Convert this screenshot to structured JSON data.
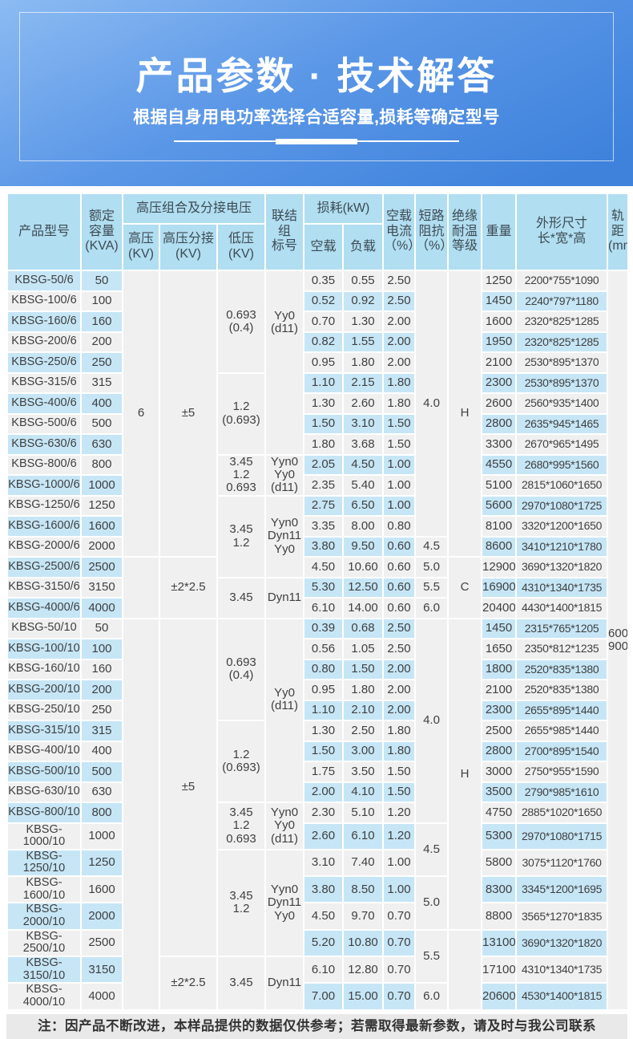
{
  "banner": {
    "title": "产品参数 · 技术解答",
    "subtitle": "根据自身用电功率选择合适容量,损耗等确定型号"
  },
  "colors": {
    "banner_blue_top": "#8cbbf2",
    "banner_blue_bottom": "#3e82dc",
    "header_cell": "#b1def1",
    "row_blue": "#c6e6f6",
    "row_grey": "#f0f0f0",
    "note_grey": "#e9e9e9"
  },
  "table": {
    "headers": {
      "model": "产品型号",
      "capacity": "额定\n容量\n(KVA)",
      "hv_group": "高压组合及分接电压",
      "hv": "高压\n(KV)",
      "hv_tap": "高压分接\n(KV)",
      "lv": "低压\n(KV)",
      "vector": "联结组\n标号",
      "loss_group": "损耗(kW)",
      "noload": "空载",
      "load": "负载",
      "noload_current": "空载\n电流\n（%）",
      "impedance": "短路\n阻抗\n（%）",
      "insulation": "绝缘\n耐温\n等级",
      "weight": "重量",
      "dims": "外形尺寸\n长*宽*高",
      "gauge_header": "轨距\n(mm)"
    },
    "gauge": "600\n900",
    "sections": [
      {
        "rows": [
          {
            "model": "KBSG-50/6",
            "kva": "50",
            "noload": "0.35",
            "load": "0.55",
            "current": "2.50",
            "weight": "1250",
            "dims": "2200*755*1090"
          },
          {
            "model": "KBSG-100/6",
            "kva": "100",
            "noload": "0.52",
            "load": "0.92",
            "current": "2.50",
            "weight": "1450",
            "dims": "2240*797*1180"
          },
          {
            "model": "KBSG-160/6",
            "kva": "160",
            "noload": "0.70",
            "load": "1.30",
            "current": "2.00",
            "weight": "1600",
            "dims": "2320*825*1285"
          },
          {
            "model": "KBSG-200/6",
            "kva": "200",
            "noload": "0.82",
            "load": "1.55",
            "current": "2.00",
            "weight": "1950",
            "dims": "2320*825*1285"
          },
          {
            "model": "KBSG-250/6",
            "kva": "250",
            "noload": "0.95",
            "load": "1.80",
            "current": "2.00",
            "weight": "2100",
            "dims": "2530*895*1370"
          },
          {
            "model": "KBSG-315/6",
            "kva": "315",
            "noload": "1.10",
            "load": "2.15",
            "current": "1.80",
            "weight": "2300",
            "dims": "2530*895*1370"
          },
          {
            "model": "KBSG-400/6",
            "kva": "400",
            "noload": "1.30",
            "load": "2.60",
            "current": "1.80",
            "weight": "2600",
            "dims": "2560*935*1400"
          },
          {
            "model": "KBSG-500/6",
            "kva": "500",
            "noload": "1.50",
            "load": "3.10",
            "current": "1.50",
            "weight": "2800",
            "dims": "2635*945*1465"
          },
          {
            "model": "KBSG-630/6",
            "kva": "630",
            "noload": "1.80",
            "load": "3.68",
            "current": "1.50",
            "weight": "3300",
            "dims": "2670*965*1495"
          },
          {
            "model": "KBSG-800/6",
            "kva": "800",
            "noload": "2.05",
            "load": "4.50",
            "current": "1.00",
            "weight": "4550",
            "dims": "2680*995*1560"
          },
          {
            "model": "KBSG-1000/6",
            "kva": "1000",
            "noload": "2.35",
            "load": "5.40",
            "current": "1.00",
            "weight": "5100",
            "dims": "2815*1060*1650"
          },
          {
            "model": "KBSG-1250/6",
            "kva": "1250",
            "noload": "2.75",
            "load": "6.50",
            "current": "1.00",
            "weight": "5600",
            "dims": "2970*1080*1725"
          },
          {
            "model": "KBSG-1600/6",
            "kva": "1600",
            "noload": "3.35",
            "load": "8.00",
            "current": "0.80",
            "weight": "8100",
            "dims": "3320*1200*1650"
          },
          {
            "model": "KBSG-2000/6",
            "kva": "2000",
            "noload": "3.80",
            "load": "9.50",
            "current": "0.60",
            "weight": "8600",
            "dims": "3410*1210*1780"
          },
          {
            "model": "KBSG-2500/6",
            "kva": "2500",
            "noload": "4.50",
            "load": "10.60",
            "current": "0.60",
            "weight": "12900",
            "dims": "3690*1320*1820"
          },
          {
            "model": "KBSG-3150/6",
            "kva": "3150",
            "noload": "5.30",
            "load": "12.50",
            "current": "0.60",
            "weight": "16900",
            "dims": "4310*1340*1735"
          },
          {
            "model": "KBSG-4000/6",
            "kva": "4000",
            "noload": "6.10",
            "load": "14.00",
            "current": "0.60",
            "weight": "20400",
            "dims": "4430*1400*1815"
          }
        ],
        "hv": [
          {
            "text": "6",
            "span": 14
          },
          {
            "text": "",
            "span": 3
          }
        ],
        "tap": [
          {
            "text": "±5",
            "span": 14
          },
          {
            "text": "±2*2.5",
            "span": 3
          }
        ],
        "lv": [
          {
            "text": "0.693\n(0.4)",
            "span": 5
          },
          {
            "text": "1.2\n(0.693)",
            "span": 4
          },
          {
            "text": "3.45\n1.2\n0.693",
            "span": 2
          },
          {
            "text": "3.45\n1.2",
            "span": 4
          },
          {
            "text": "3.45",
            "span": 2
          }
        ],
        "vector": [
          {
            "text": "Yy0\n(d11)",
            "span": 9,
            "lift": 100
          },
          {
            "text": "Yyn0\nYy0\n(d11)",
            "span": 2
          },
          {
            "text": "Yyn0\nDyn11\nYy0",
            "span": 4
          },
          {
            "text": "Dyn11",
            "span": 2
          }
        ],
        "impedance": [
          {
            "text": "4.0",
            "span": 13
          },
          {
            "text": "4.5",
            "span": 1
          },
          {
            "text": "5.0",
            "span": 1
          },
          {
            "text": "5.5",
            "span": 1
          },
          {
            "text": "6.0",
            "span": 1
          }
        ],
        "insulation": [
          {
            "text": "H",
            "span": 14
          },
          {
            "text": "C",
            "span": 3
          }
        ]
      },
      {
        "rows": [
          {
            "model": "KBSG-50/10",
            "kva": "50",
            "noload": "0.39",
            "load": "0.68",
            "current": "2.50",
            "weight": "1450",
            "dims": "2315*765*1205"
          },
          {
            "model": "KBSG-100/10",
            "kva": "100",
            "noload": "0.56",
            "load": "1.05",
            "current": "2.50",
            "weight": "1650",
            "dims": "2350*812*1235"
          },
          {
            "model": "KBSG-160/10",
            "kva": "160",
            "noload": "0.80",
            "load": "1.50",
            "current": "2.00",
            "weight": "1800",
            "dims": "2520*835*1380"
          },
          {
            "model": "KBSG-200/10",
            "kva": "200",
            "noload": "0.95",
            "load": "1.80",
            "current": "2.00",
            "weight": "2100",
            "dims": "2520*835*1380"
          },
          {
            "model": "KBSG-250/10",
            "kva": "250",
            "noload": "1.10",
            "load": "2.10",
            "current": "2.00",
            "weight": "2300",
            "dims": "2655*895*1440"
          },
          {
            "model": "KBSG-315/10",
            "kva": "315",
            "noload": "1.30",
            "load": "2.50",
            "current": "1.80",
            "weight": "2500",
            "dims": "2655*985*1440"
          },
          {
            "model": "KBSG-400/10",
            "kva": "400",
            "noload": "1.50",
            "load": "3.00",
            "current": "1.80",
            "weight": "2800",
            "dims": "2700*895*1540"
          },
          {
            "model": "KBSG-500/10",
            "kva": "500",
            "noload": "1.75",
            "load": "3.50",
            "current": "1.50",
            "weight": "3000",
            "dims": "2750*955*1590"
          },
          {
            "model": "KBSG-630/10",
            "kva": "630",
            "noload": "2.00",
            "load": "4.10",
            "current": "1.50",
            "weight": "3500",
            "dims": "2790*985*1610"
          },
          {
            "model": "KBSG-800/10",
            "kva": "800",
            "noload": "2.30",
            "load": "5.10",
            "current": "1.20",
            "weight": "4750",
            "dims": "2885*1020*1650"
          },
          {
            "model": "KBSG-1000/10",
            "kva": "1000",
            "noload": "2.60",
            "load": "6.10",
            "current": "1.20",
            "weight": "5300",
            "dims": "2970*1080*1715"
          },
          {
            "model": "KBSG-1250/10",
            "kva": "1250",
            "noload": "3.10",
            "load": "7.40",
            "current": "1.00",
            "weight": "5800",
            "dims": "3075*1120*1760"
          },
          {
            "model": "KBSG-1600/10",
            "kva": "1600",
            "noload": "3.80",
            "load": "8.50",
            "current": "1.00",
            "weight": "8300",
            "dims": "3345*1200*1695"
          },
          {
            "model": "KBSG-2000/10",
            "kva": "2000",
            "noload": "4.50",
            "load": "9.70",
            "current": "0.70",
            "weight": "8800",
            "dims": "3565*1270*1835"
          },
          {
            "model": "KBSG-2500/10",
            "kva": "2500",
            "noload": "5.20",
            "load": "10.80",
            "current": "0.70",
            "weight": "13100",
            "dims": "3690*1320*1820"
          },
          {
            "model": "KBSG-3150/10",
            "kva": "3150",
            "noload": "6.10",
            "load": "12.80",
            "current": "0.70",
            "weight": "17100",
            "dims": "4310*1340*1735"
          },
          {
            "model": "KBSG-4000/10",
            "kva": "4000",
            "noload": "7.00",
            "load": "15.00",
            "current": "0.70",
            "weight": "20600",
            "dims": "4530*1400*1815"
          }
        ],
        "hv": [
          {
            "text": "",
            "span": 17
          }
        ],
        "tap": [
          {
            "text": "±5",
            "span": 15
          },
          {
            "text": "±2*2.5",
            "span": 2
          }
        ],
        "lv": [
          {
            "text": "0.693\n(0.4)",
            "span": 5
          },
          {
            "text": "1.2\n(0.693)",
            "span": 4
          },
          {
            "text": "3.45\n1.2\n0.693",
            "span": 2
          },
          {
            "text": "3.45\n1.2",
            "span": 4
          },
          {
            "text": "3.45",
            "span": 2
          }
        ],
        "vector": [
          {
            "text": "Yy0\n(d11)",
            "span": 9,
            "lift": 26
          },
          {
            "text": "Yyn0\nYy0\n(d11)",
            "span": 2
          },
          {
            "text": "Yyn0\nDyn11\nYy0",
            "span": 4
          },
          {
            "text": "Dyn11",
            "span": 2
          }
        ],
        "impedance": [
          {
            "text": "4.0",
            "span": 10
          },
          {
            "text": "4.5",
            "span": 2
          },
          {
            "text": "5.0",
            "span": 2
          },
          {
            "text": "5.5",
            "span": 2
          },
          {
            "text": "6.0",
            "span": 1
          }
        ],
        "insulation": [
          {
            "text": "H",
            "span": 14
          },
          {
            "text": "",
            "span": 3
          }
        ]
      }
    ]
  },
  "note": {
    "text": "注：因产品不断改进，本样品提供的数据仅供参考；若需取得最新参数，请及时与我公司联系"
  }
}
